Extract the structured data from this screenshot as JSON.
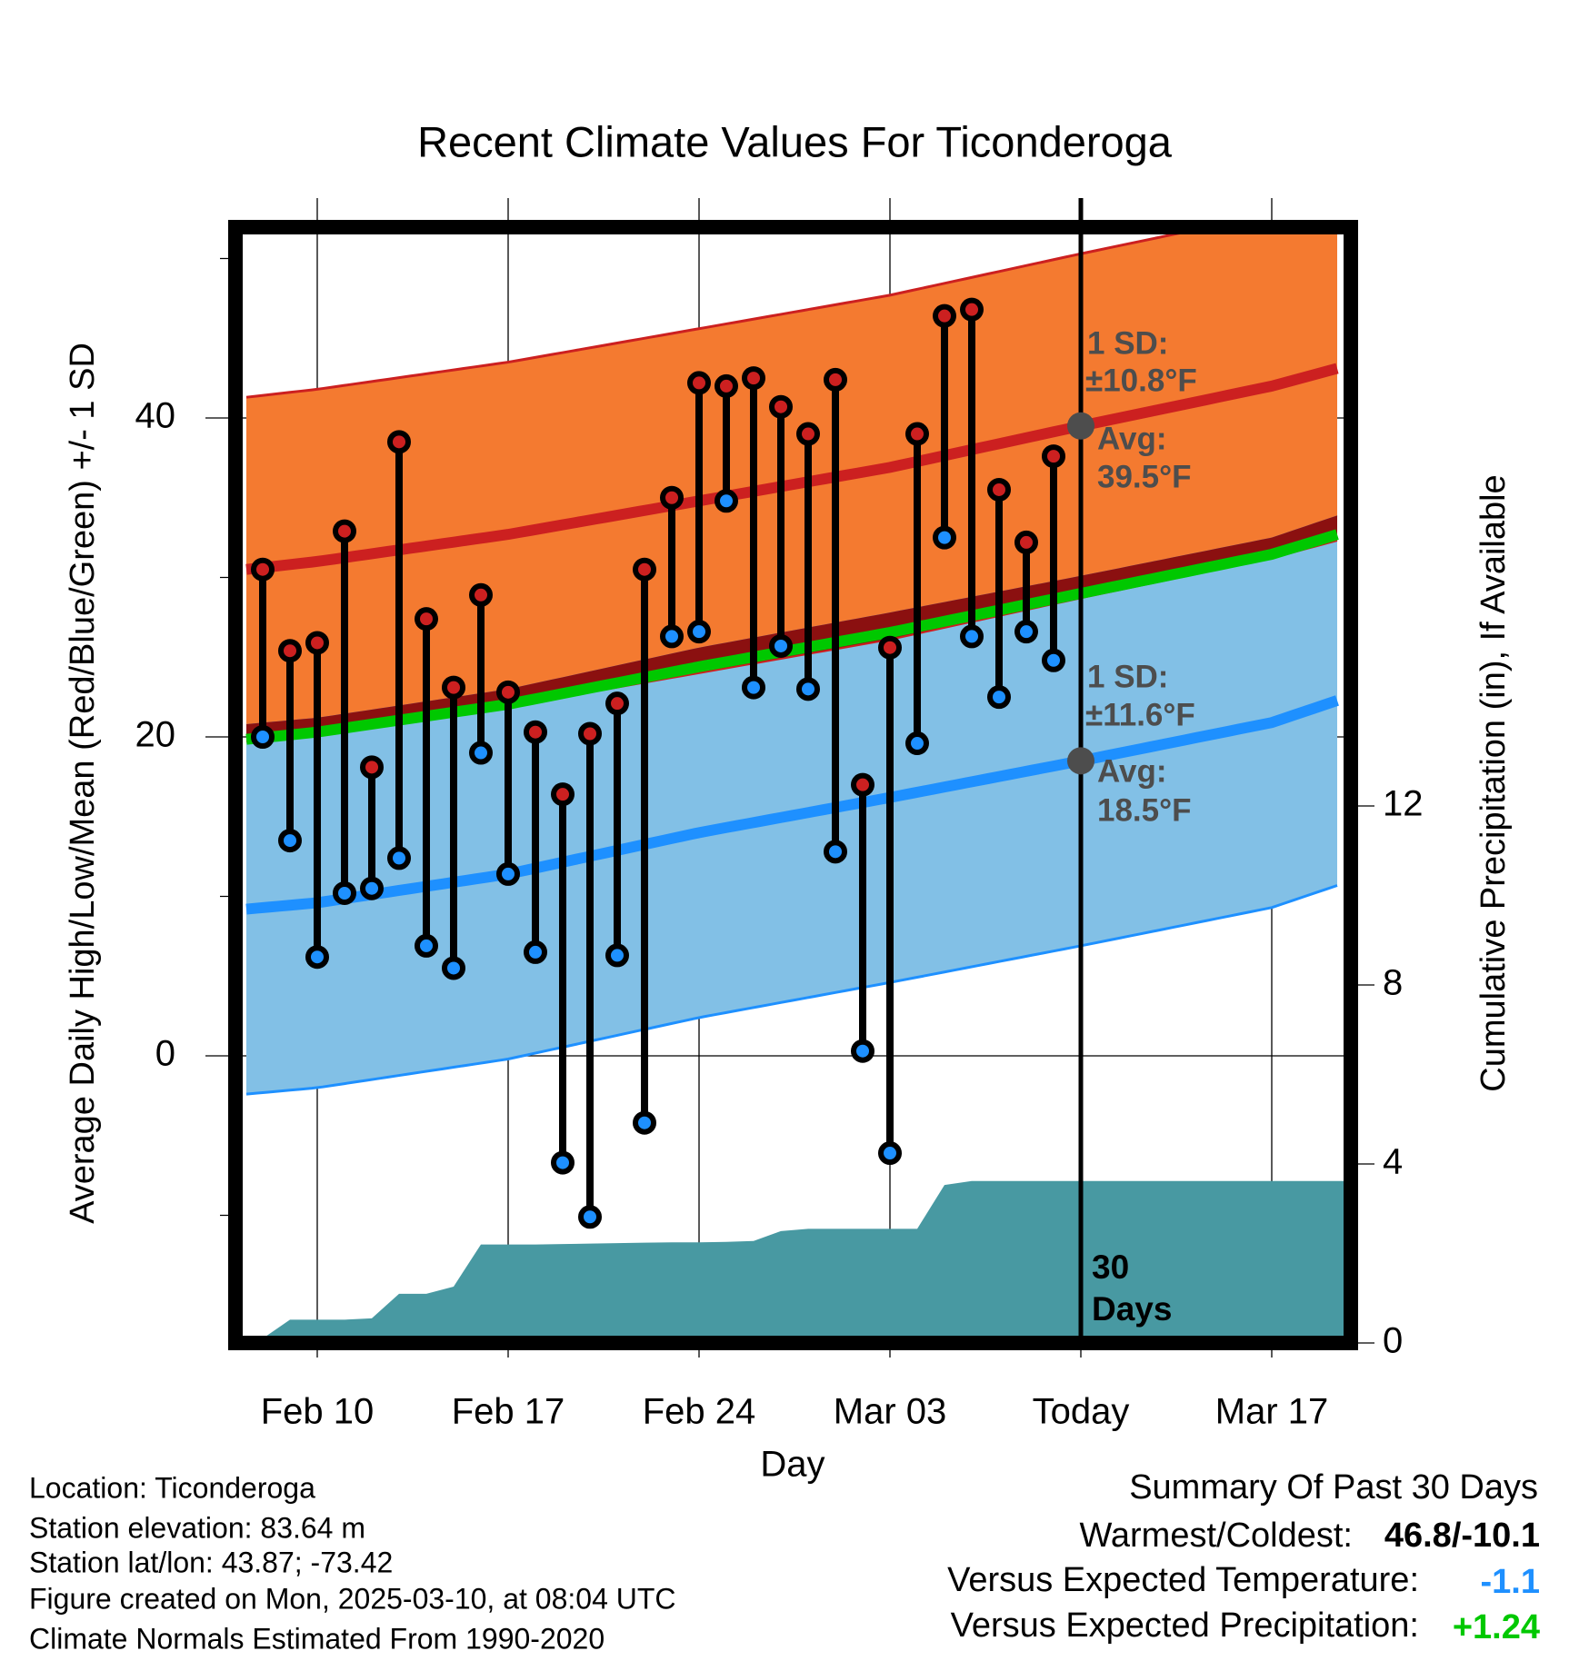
{
  "chart_data": {
    "type": "line",
    "title": "Recent Climate Values For Ticonderoga",
    "xlabel": "Day",
    "ylabel": "Average Daily High/Low/Mean (Red/Blue/Green) +/- 1 SD",
    "y2label": "Cumulative Precipitation (in), If Available",
    "xticks": [
      "Feb 10",
      "Feb 17",
      "Feb 24",
      "Mar 03",
      "Today",
      "Mar 17"
    ],
    "xtick_days": [
      10,
      17,
      24,
      31,
      38,
      45
    ],
    "xlim_days": [
      7.4,
      47.6
    ],
    "yticks": [
      "40",
      "20",
      "0"
    ],
    "ytick_values": [
      40,
      20,
      0
    ],
    "yminor": [
      50,
      30,
      10,
      -10
    ],
    "ylim": [
      -17.5,
      51.5
    ],
    "y2ticks": [
      "12",
      "8",
      "4",
      "0"
    ],
    "y2tick_values": [
      12,
      8,
      4,
      0
    ],
    "y2lim": [
      0,
      24.8
    ],
    "dates": [
      "Feb 08",
      "Feb 09",
      "Feb 10",
      "Feb 11",
      "Feb 12",
      "Feb 13",
      "Feb 14",
      "Feb 15",
      "Feb 16",
      "Feb 17",
      "Feb 18",
      "Feb 19",
      "Feb 20",
      "Feb 21",
      "Feb 22",
      "Feb 23",
      "Feb 24",
      "Feb 25",
      "Feb 26",
      "Feb 27",
      "Feb 28",
      "Mar 01",
      "Mar 02",
      "Mar 03",
      "Mar 04",
      "Mar 05",
      "Mar 06",
      "Mar 07",
      "Mar 08",
      "Mar 09"
    ],
    "days": [
      8,
      9,
      10,
      11,
      12,
      13,
      14,
      15,
      16,
      17,
      18,
      19,
      20,
      21,
      22,
      23,
      24,
      25,
      26,
      27,
      28,
      29,
      30,
      31,
      32,
      33,
      34,
      35,
      36,
      37
    ],
    "highs": [
      30.5,
      25.4,
      25.9,
      32.9,
      18.1,
      38.5,
      27.4,
      23.1,
      28.9,
      22.8,
      20.3,
      16.4,
      20.2,
      22.1,
      30.5,
      35.0,
      42.2,
      42.0,
      42.5,
      40.7,
      39.0,
      42.4,
      17.0,
      25.6,
      39.0,
      46.4,
      46.8,
      35.5,
      32.2,
      37.6
    ],
    "lows": [
      20.0,
      13.5,
      6.2,
      10.2,
      10.5,
      12.4,
      6.9,
      5.5,
      19.0,
      11.4,
      6.5,
      -6.7,
      -10.1,
      6.3,
      -4.2,
      26.3,
      26.6,
      34.8,
      23.1,
      25.7,
      23.0,
      12.8,
      0.3,
      -6.1,
      19.6,
      32.5,
      26.3,
      22.5,
      26.6,
      24.8
    ],
    "precip_cumulative": [
      0.1,
      0.52,
      0.52,
      0.52,
      0.55,
      1.1,
      1.1,
      1.26,
      2.2,
      2.2,
      2.2,
      2.21,
      2.22,
      2.23,
      2.24,
      2.25,
      2.25,
      2.26,
      2.28,
      2.5,
      2.55,
      2.55,
      2.55,
      2.55,
      2.55,
      3.53,
      3.62,
      3.62,
      3.62,
      3.62
    ],
    "normal_days": [
      7.4,
      10,
      17,
      24,
      31,
      38,
      45,
      47.6
    ],
    "normal_high": [
      30.5,
      31.0,
      32.7,
      34.8,
      36.9,
      39.5,
      42.0,
      43.2
    ],
    "normal_low": [
      9.2,
      9.6,
      11.4,
      14.0,
      16.2,
      18.5,
      20.9,
      22.4
    ],
    "sd_high": 10.8,
    "sd_low": 11.6,
    "today_day": 38,
    "annotations": {
      "high_sd": "1 SD:",
      "high_sd_value": "±10.8°F",
      "high_avg": "Avg:",
      "high_avg_value": "39.5°F",
      "low_sd": "1 SD:",
      "low_sd_value": "±11.6°F",
      "low_avg": "Avg:",
      "low_avg_value": "18.5°F",
      "days_count": "30",
      "days_word": "Days"
    },
    "colors": {
      "high_band": "#f47a30",
      "high_line": "#cc2020",
      "low_band": "#82c0e6",
      "low_line": "#1e90ff",
      "mean_line": "#00c800",
      "overlap": "#8b1010",
      "precip": "#4899a2",
      "high_dot": "#cc2020",
      "low_dot": "#1e90ff",
      "avg_marker": "#4d4d4d"
    }
  },
  "info": {
    "location": "Location: Ticonderoga",
    "elevation": "Station elevation: 83.64 m",
    "latlon": "Station lat/lon: 43.87; -73.42",
    "created": "Figure created on Mon, 2025-03-10, at 08:04 UTC",
    "normals": "Climate Normals Estimated From 1990-2020"
  },
  "summary": {
    "title": "Summary Of Past 30 Days",
    "warmest_label": "Warmest/Coldest:",
    "warmest_value": "46.8/-10.1",
    "temp_label": "Versus Expected Temperature:",
    "temp_value": "-1.1",
    "temp_color": "#1e90ff",
    "precip_label": "Versus Expected Precipitation:",
    "precip_value": "+1.24",
    "precip_color": "#00c800"
  }
}
